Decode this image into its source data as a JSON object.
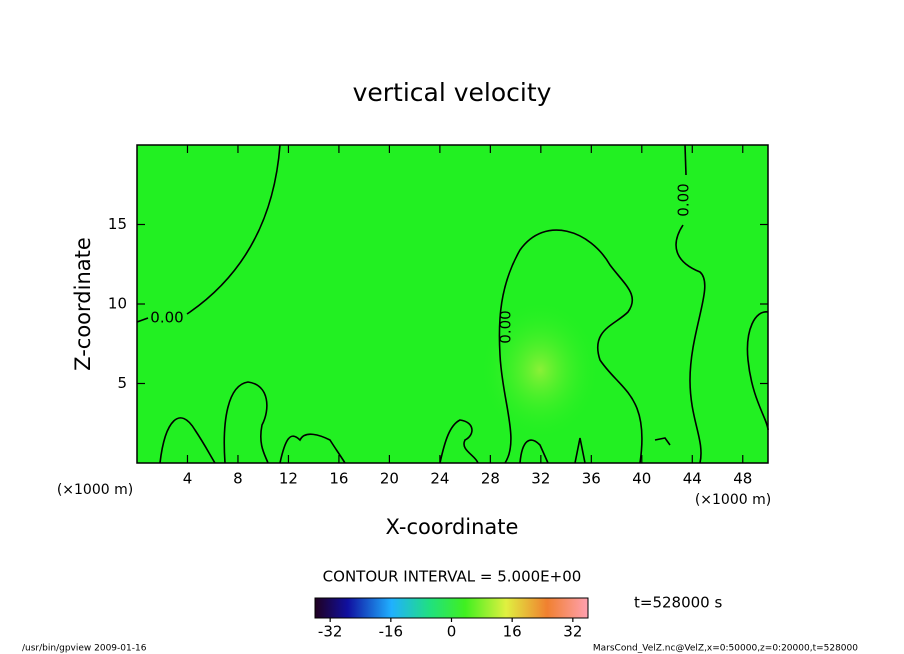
{
  "chart_data": {
    "type": "contour",
    "title": "vertical velocity",
    "x_label": "X-coordinate",
    "y_label": "Z-coordinate",
    "x_unit_left": "(×1000 m)",
    "x_unit_right": "(×1000 m)",
    "xlim": [
      0,
      50
    ],
    "xticks": [
      4,
      8,
      12,
      16,
      20,
      24,
      28,
      32,
      36,
      40,
      44,
      48
    ],
    "ylim": [
      0,
      20
    ],
    "yticks": [
      5,
      10,
      15
    ],
    "contour_labels": [
      "0.00",
      "0.00",
      "0.00"
    ],
    "contour_interval": "CONTOUR INTERVAL = 5.000E+00",
    "time": "t=528000 s",
    "clim": [
      -36,
      36
    ],
    "cticks": [
      -32,
      -16,
      0,
      16,
      32
    ],
    "footer_left": "/usr/bin/gpview  2009-01-16",
    "footer_right": "MarsCond_VelZ.nc@VelZ,x=0:50000,z=0:20000,t=528000"
  }
}
